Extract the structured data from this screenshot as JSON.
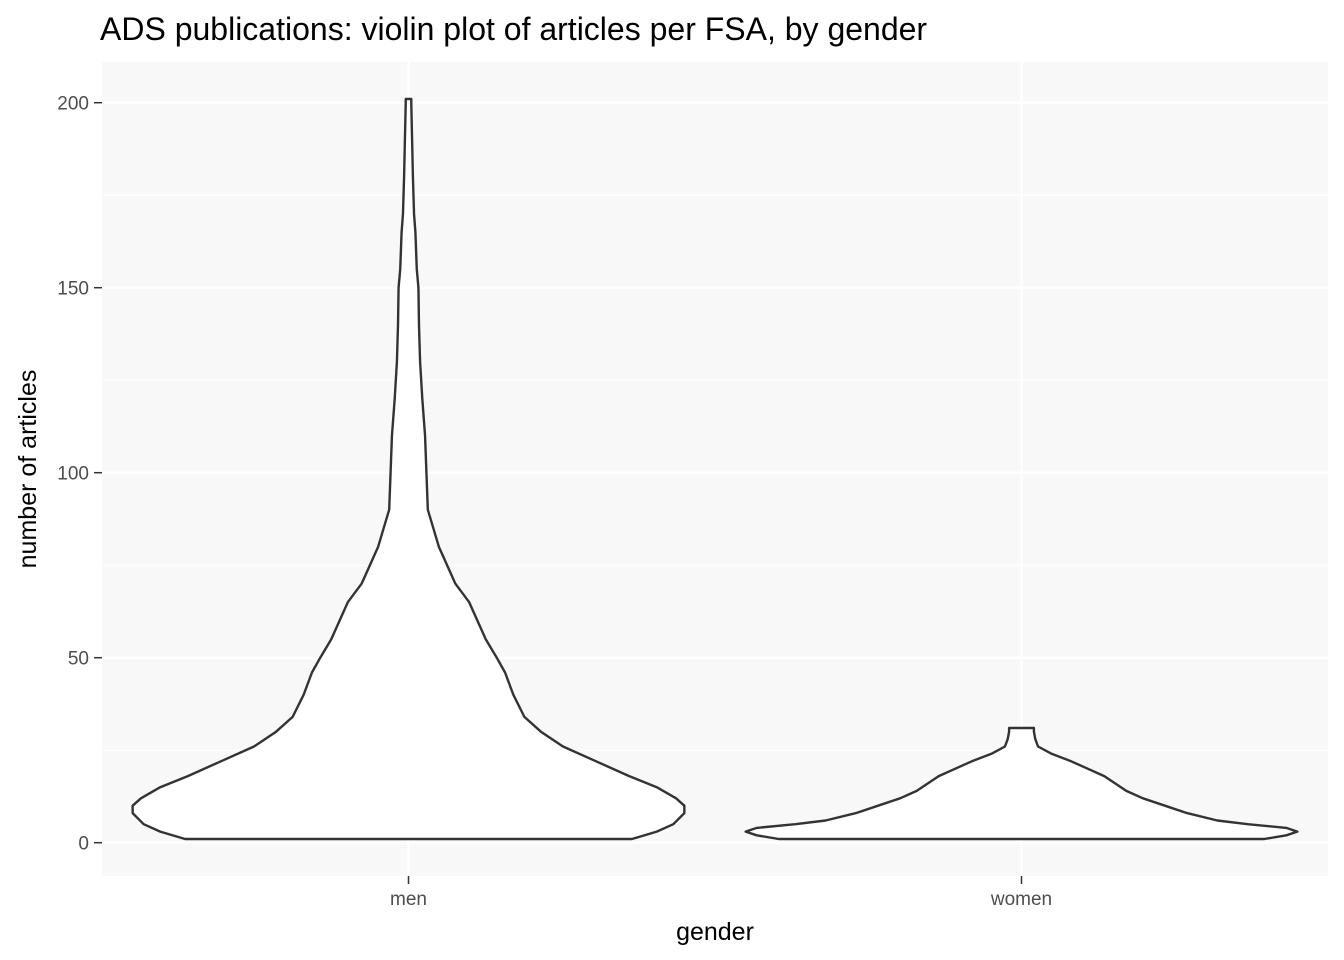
{
  "chart_data": {
    "type": "violin",
    "title": "ADS publications: violin plot of articles per FSA, by gender",
    "xlabel": "gender",
    "ylabel": "number of articles",
    "categories": [
      "men",
      "women"
    ],
    "ylim": [
      -9,
      211
    ],
    "yticks": [
      0,
      50,
      100,
      150,
      200
    ],
    "grid": true,
    "legend": "none",
    "colors": {
      "panel": "#f8f8f8",
      "grid": "#ffffff",
      "outline": "#333333",
      "fill": "#ffffff",
      "tick_text": "#4d4d4d",
      "text": "#000000"
    },
    "series": [
      {
        "category": "men",
        "y_range": [
          1,
          201
        ],
        "density_profile": [
          [
            1,
            0.81
          ],
          [
            3,
            0.9
          ],
          [
            5,
            0.96
          ],
          [
            8,
            1.0
          ],
          [
            10,
            1.0
          ],
          [
            12,
            0.97
          ],
          [
            15,
            0.9
          ],
          [
            18,
            0.8
          ],
          [
            22,
            0.68
          ],
          [
            26,
            0.56
          ],
          [
            30,
            0.48
          ],
          [
            34,
            0.42
          ],
          [
            40,
            0.38
          ],
          [
            46,
            0.35
          ],
          [
            50,
            0.32
          ],
          [
            55,
            0.28
          ],
          [
            60,
            0.25
          ],
          [
            65,
            0.22
          ],
          [
            70,
            0.17
          ],
          [
            75,
            0.14
          ],
          [
            80,
            0.11
          ],
          [
            85,
            0.09
          ],
          [
            90,
            0.07
          ],
          [
            100,
            0.065
          ],
          [
            110,
            0.06
          ],
          [
            120,
            0.05
          ],
          [
            130,
            0.042
          ],
          [
            140,
            0.038
          ],
          [
            150,
            0.036
          ],
          [
            155,
            0.03
          ],
          [
            165,
            0.025
          ],
          [
            170,
            0.02
          ],
          [
            180,
            0.016
          ],
          [
            190,
            0.013
          ],
          [
            200,
            0.01
          ],
          [
            201,
            0.01
          ]
        ]
      },
      {
        "category": "women",
        "y_range": [
          1,
          31
        ],
        "density_profile": [
          [
            1,
            0.88
          ],
          [
            2,
            0.96
          ],
          [
            3,
            1.0
          ],
          [
            4,
            0.96
          ],
          [
            5,
            0.82
          ],
          [
            6,
            0.71
          ],
          [
            8,
            0.6
          ],
          [
            10,
            0.52
          ],
          [
            12,
            0.44
          ],
          [
            14,
            0.38
          ],
          [
            16,
            0.34
          ],
          [
            18,
            0.3
          ],
          [
            20,
            0.24
          ],
          [
            22,
            0.18
          ],
          [
            24,
            0.11
          ],
          [
            26,
            0.06
          ],
          [
            28,
            0.05
          ],
          [
            30,
            0.045
          ],
          [
            31,
            0.045
          ]
        ]
      }
    ],
    "labels": {
      "ytick_labels": [
        "0",
        "50",
        "100",
        "150",
        "200"
      ]
    }
  }
}
